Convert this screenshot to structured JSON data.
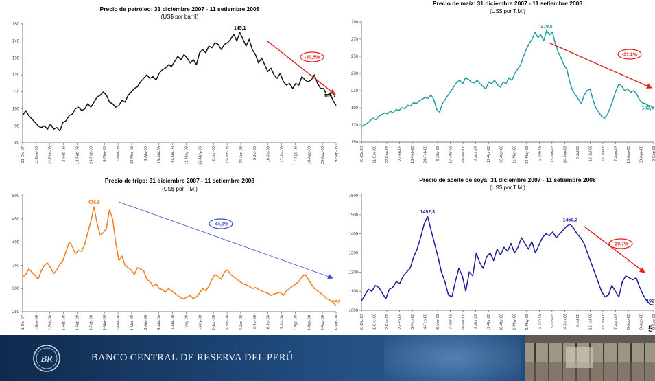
{
  "page_number": "5",
  "footer": {
    "bank_name": "BANCO CENTRAL DE RESERVA DEL PERÚ"
  },
  "chart_data": [
    {
      "type": "line",
      "title": "Precio de petróleo: 31 diciembre 2007 - 11 setiembre 2008",
      "subtitle": "(US$ por barril)",
      "ylim": [
        80,
        150
      ],
      "yticks": [
        80,
        90,
        100,
        110,
        120,
        130,
        140,
        150
      ],
      "grid": false,
      "color": "#111111",
      "x_tick_labels": [
        "31-Dic-07",
        "11-Ene-08",
        "22-Ene-08",
        "2-Feb-08",
        "13-Feb-08",
        "24-Feb-08",
        "6-Mar-08",
        "17-Mar-08",
        "28-Mar-08",
        "8-Abr-08",
        "19-Abr-08",
        "30-Abr-08",
        "11-May-08",
        "22-May-08",
        "2-Jun-08",
        "13-Jun-08",
        "24-Jun-08",
        "5-Jul-08",
        "16-Jul-08",
        "27-Jul-08",
        "7-Ago-08",
        "18-Ago-08",
        "29-Ago-08",
        "9-Sep-08"
      ],
      "values": [
        96,
        99,
        96,
        94,
        92,
        90,
        89,
        90,
        88,
        91,
        88,
        89,
        87,
        92,
        93,
        96,
        97,
        100,
        101,
        99,
        100,
        103,
        101,
        104,
        107,
        108,
        110,
        108,
        104,
        103,
        101,
        102,
        105,
        104,
        108,
        110,
        112,
        113,
        116,
        118,
        120,
        118,
        119,
        117,
        121,
        123,
        124,
        126,
        125,
        128,
        131,
        129,
        132,
        130,
        127,
        129,
        126,
        133,
        135,
        133,
        137,
        136,
        139,
        138,
        135,
        138,
        139,
        141,
        144,
        140,
        145,
        141,
        137,
        141,
        135,
        132,
        127,
        130,
        126,
        122,
        124,
        120,
        118,
        121,
        116,
        114,
        115,
        112,
        115,
        114,
        119,
        117,
        116,
        117,
        120,
        115,
        112,
        112,
        108,
        109,
        105,
        102
      ],
      "annotations": [
        {
          "label": "145,1",
          "x_index": 70,
          "value": 145.1,
          "color": "#000000"
        },
        {
          "label": "109,7",
          "x_index": 99,
          "value": 105,
          "color": "#000000"
        }
      ],
      "arrow_label": "-30,5%",
      "arrow_color": "#e0201a"
    },
    {
      "type": "line",
      "title": "Precio de maíz: 31 diciembre 2007 - 11 setiembre 2008",
      "subtitle": "(US$ por T.M.)",
      "ylim": [
        150,
        290
      ],
      "yticks": [
        150,
        170,
        190,
        210,
        230,
        250,
        270,
        290
      ],
      "grid": false,
      "color": "#1e9aa0",
      "x_tick_labels": [
        "31-Dic-07",
        "11-Ene-08",
        "22-Ene-08",
        "2-Feb-08",
        "13-Feb-08",
        "24-Feb-08",
        "6-Mar-08",
        "17-Mar-08",
        "28-Mar-08",
        "8-Abr-08",
        "19-Abr-08",
        "30-Abr-08",
        "11-May-08",
        "22-May-08",
        "2-Jun-08",
        "13-Jun-08",
        "24-Jun-08",
        "5-Jul-08",
        "16-Jul-08",
        "27-Jul-08",
        "7-Ago-08",
        "18-Ago-08",
        "29-Ago-08",
        "9-Sep-08"
      ],
      "values": [
        168,
        170,
        172,
        175,
        178,
        176,
        180,
        182,
        184,
        183,
        186,
        184,
        188,
        187,
        190,
        189,
        193,
        192,
        196,
        195,
        198,
        200,
        202,
        201,
        205,
        200,
        188,
        185,
        195,
        200,
        205,
        210,
        215,
        220,
        222,
        218,
        225,
        223,
        220,
        219,
        222,
        218,
        215,
        212,
        220,
        218,
        222,
        217,
        214,
        220,
        218,
        225,
        222,
        230,
        235,
        240,
        250,
        258,
        265,
        270,
        278,
        272,
        275,
        268,
        280,
        275,
        278,
        265,
        255,
        248,
        240,
        235,
        220,
        210,
        205,
        200,
        195,
        205,
        210,
        212,
        200,
        190,
        185,
        180,
        178,
        182,
        190,
        200,
        210,
        218,
        215,
        210,
        212,
        208,
        210,
        207,
        200,
        196,
        195,
        193,
        192,
        190
      ],
      "annotations": [
        {
          "label": "279,5",
          "x_index": 64,
          "value": 279.5,
          "color": "#1e9aa0"
        },
        {
          "label": "192,5",
          "x_index": 99,
          "value": 185,
          "color": "#1e9aa0"
        }
      ],
      "arrow_label": "-31,2%",
      "arrow_color": "#e0201a"
    },
    {
      "type": "line",
      "title": "Precio de trigo: 31 diciembre 2007 - 11 setiembre 2008",
      "subtitle": "(US$ por T.M.)",
      "ylim": [
        250,
        500
      ],
      "yticks": [
        250,
        300,
        350,
        400,
        450,
        500
      ],
      "grid": false,
      "color": "#f07c1c",
      "x_tick_labels": [
        "31-Dic-07",
        "11-Ene-08",
        "22-Ene-08",
        "2-Feb-08",
        "13-Feb-08",
        "24-Feb-08",
        "6-Mar-08",
        "17-Mar-08",
        "28-Mar-08",
        "8-Abr-08",
        "19-Abr-08",
        "30-Abr-08",
        "11-May-08",
        "22-May-08",
        "2-Jun-08",
        "13-Jun-08",
        "24-Jun-08",
        "5-Jul-08",
        "16-Jul-08",
        "27-Jul-08",
        "7-Ago-08",
        "18-Ago-08",
        "29-Ago-08",
        "9-Sep-08"
      ],
      "values": [
        325,
        330,
        342,
        335,
        328,
        320,
        338,
        350,
        355,
        345,
        332,
        340,
        352,
        360,
        380,
        400,
        390,
        375,
        382,
        380,
        395,
        420,
        445,
        476,
        440,
        415,
        420,
        430,
        470,
        450,
        400,
        360,
        370,
        350,
        345,
        340,
        330,
        345,
        342,
        338,
        320,
        315,
        305,
        310,
        300,
        298,
        292,
        300,
        295,
        290,
        285,
        280,
        278,
        282,
        285,
        278,
        282,
        290,
        300,
        295,
        305,
        320,
        330,
        325,
        320,
        335,
        340,
        330,
        325,
        320,
        315,
        310,
        308,
        305,
        300,
        302,
        298,
        295,
        292,
        290,
        285,
        288,
        290,
        292,
        285,
        295,
        300,
        305,
        310,
        315,
        325,
        330,
        320,
        310,
        300,
        295,
        290,
        285,
        278,
        275,
        270,
        262
      ],
      "annotations": [
        {
          "label": "476,6",
          "x_index": 23,
          "value": 476.6,
          "color": "#f07c1c"
        },
        {
          "label": "262",
          "x_index": 101,
          "value": 262,
          "color": "#f07c1c"
        }
      ],
      "arrow_label": "-44,9%",
      "arrow_color": "#3a4fcf"
    },
    {
      "type": "line",
      "title": "Precio de aceite de soya: 31 diciembre 2007 - 11 setiembre 2008",
      "subtitle": "(US$ por T.M.)",
      "ylim": [
        1000,
        1600
      ],
      "yticks": [
        1000,
        1100,
        1200,
        1300,
        1400,
        1500,
        1600
      ],
      "grid": false,
      "color": "#1a1a9a",
      "x_tick_labels": [
        "31-Dic-07",
        "11-Ene-08",
        "22-Ene-08",
        "2-Feb-08",
        "13-Feb-08",
        "24-Feb-08",
        "6-Mar-08",
        "17-Mar-08",
        "28-Mar-08",
        "8-Abr-08",
        "19-Abr-08",
        "30-Abr-08",
        "11-May-08",
        "22-May-08",
        "2-Jun-08",
        "13-Jun-08",
        "24-Jun-08",
        "5-Jul-08",
        "16-Jul-08",
        "27-Jul-08",
        "7-Ago-08",
        "18-Ago-08",
        "29-Ago-08",
        "9-Sep-08"
      ],
      "values": [
        1050,
        1080,
        1110,
        1100,
        1130,
        1120,
        1090,
        1060,
        1110,
        1120,
        1150,
        1140,
        1180,
        1200,
        1220,
        1280,
        1320,
        1380,
        1450,
        1492,
        1420,
        1350,
        1280,
        1200,
        1150,
        1080,
        1070,
        1150,
        1220,
        1180,
        1100,
        1200,
        1180,
        1300,
        1250,
        1220,
        1280,
        1300,
        1260,
        1320,
        1290,
        1330,
        1310,
        1350,
        1300,
        1330,
        1380,
        1350,
        1320,
        1360,
        1300,
        1340,
        1380,
        1400,
        1390,
        1410,
        1380,
        1400,
        1420,
        1440,
        1450,
        1430,
        1400,
        1380,
        1350,
        1300,
        1250,
        1200,
        1150,
        1100,
        1070,
        1080,
        1130,
        1100,
        1070,
        1150,
        1180,
        1170,
        1160,
        1170,
        1120,
        1080,
        1050,
        1030,
        1027
      ],
      "annotations": [
        {
          "label": "1492,3",
          "x_index": 19,
          "value": 1492.3,
          "color": "#1a1a9a"
        },
        {
          "label": "1450,2",
          "x_index": 60,
          "value": 1450.2,
          "color": "#1a1a9a"
        },
        {
          "label": "1027,1",
          "x_index": 84,
          "value": 1027.1,
          "color": "#1a1a9a"
        }
      ],
      "arrow_label": "-29,7%",
      "arrow_color": "#e0201a"
    }
  ]
}
